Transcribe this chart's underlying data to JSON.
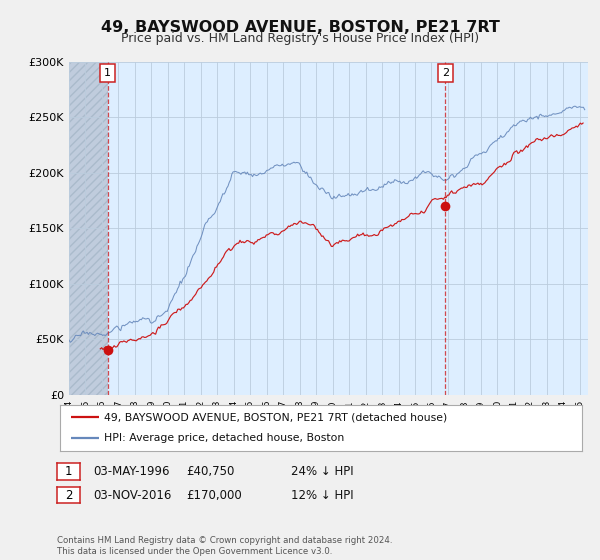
{
  "title": "49, BAYSWOOD AVENUE, BOSTON, PE21 7RT",
  "subtitle": "Price paid vs. HM Land Registry's House Price Index (HPI)",
  "title_fontsize": 11.5,
  "subtitle_fontsize": 9,
  "bg_color": "#f0f0f0",
  "plot_bg_color": "#ddeeff",
  "hatch_color": "#c0ccdd",
  "grid_color": "#bbccdd",
  "red_line_color": "#cc1111",
  "blue_line_color": "#6688bb",
  "annotation_box_color": "#cc2222",
  "sale1_x": 1996.34,
  "sale1_y": 40750,
  "sale2_x": 2016.84,
  "sale2_y": 170000,
  "xmin": 1994,
  "xmax": 2025.5,
  "ymin": 0,
  "ymax": 300000,
  "yticks": [
    0,
    50000,
    100000,
    150000,
    200000,
    250000,
    300000
  ],
  "ytick_labels": [
    "£0",
    "£50K",
    "£100K",
    "£150K",
    "£200K",
    "£250K",
    "£300K"
  ],
  "legend_line1": "49, BAYSWOOD AVENUE, BOSTON, PE21 7RT (detached house)",
  "legend_line2": "HPI: Average price, detached house, Boston",
  "copyright": "Contains HM Land Registry data © Crown copyright and database right 2024.\nThis data is licensed under the Open Government Licence v3.0."
}
